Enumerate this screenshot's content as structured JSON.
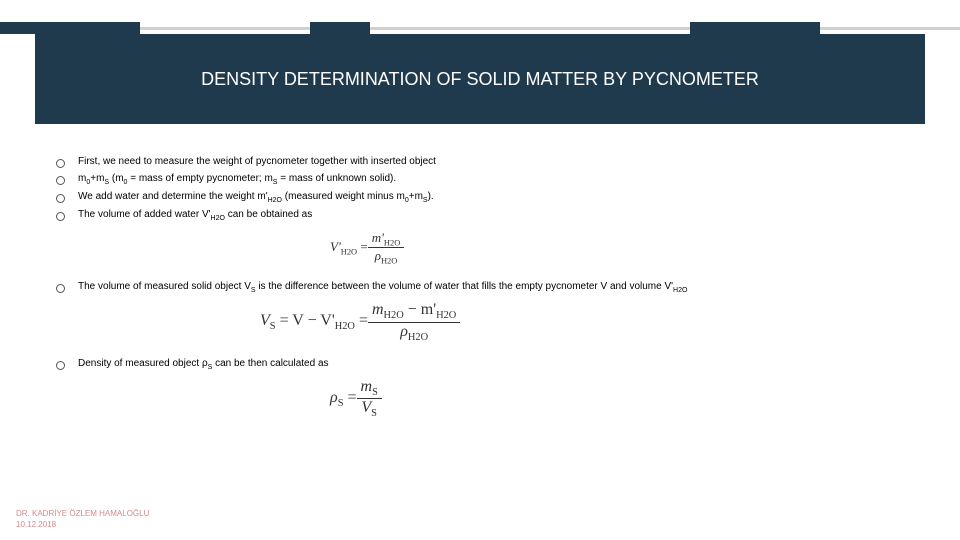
{
  "title": "DENSITY DETERMINATION OF SOLID MATTER BY PYCNOMETER",
  "title_fontsize": 18,
  "bullets": {
    "b1": "First, we need to measure the weight of pycnometer together with inserted object",
    "b2_pre": "m",
    "b2_sub1": "0",
    "b2_mid1": "+m",
    "b2_sub2": "S",
    "b2_mid2": " (m",
    "b2_sub3": "0",
    "b2_mid3": " = mass of empty pycnometer; m",
    "b2_sub4": "S",
    "b2_post": " = mass of unknown solid).",
    "b3_pre": "We add water and determine the weight m'",
    "b3_sub1": "H2O",
    "b3_mid1": " (measured weight minus m",
    "b3_sub2": "0",
    "b3_mid2": "+m",
    "b3_sub3": "S",
    "b3_post": ").",
    "b4_pre": "The volume of added water V'",
    "b4_sub1": "H2O",
    "b4_post": " can be obtained as",
    "b5_pre": "The volume of measured solid object V",
    "b5_sub1": "S",
    "b5_mid": " is the difference between the volume of water that fills the empty pycnometer V and volume V'",
    "b5_sub2": "H2O",
    "b6_pre": "Density of measured object ρ",
    "b6_sub1": "S",
    "b6_post": " can be then calculated as"
  },
  "formula1": {
    "lhs_v": "V'",
    "lhs_sub": "H2O",
    "eq": " = ",
    "num_m": "m'",
    "num_sub": "H2O",
    "den_r": "ρ",
    "den_sub": "H2O",
    "fontsize": 13,
    "margin_left": 280
  },
  "formula2": {
    "lhs_v": "V",
    "lhs_sub": "S",
    "eq1": " = V − V'",
    "eq1_sub": "H2O",
    "eq2": " = ",
    "num_a": "m",
    "num_a_sub": "H2O",
    "num_minus": " − m'",
    "num_b_sub": "H2O",
    "den_r": "ρ",
    "den_sub": "H2O",
    "fontsize": 16,
    "margin_left": 210
  },
  "formula3": {
    "lhs_r": "ρ",
    "lhs_sub": "S",
    "eq": " = ",
    "num_m": "m",
    "num_sub": "S",
    "den_v": "V",
    "den_sub": "S",
    "fontsize": 16,
    "margin_left": 280
  },
  "footer": {
    "line1": "DR. KADRİYE ÖZLEM HAMALOĞLU",
    "line2": "10.12.2018",
    "fontsize": 8,
    "color": "#d38b8b"
  },
  "bullet_fontsize": 10,
  "colors": {
    "band": "#1f3a4d",
    "bg": "#ffffff",
    "text": "#000000"
  }
}
